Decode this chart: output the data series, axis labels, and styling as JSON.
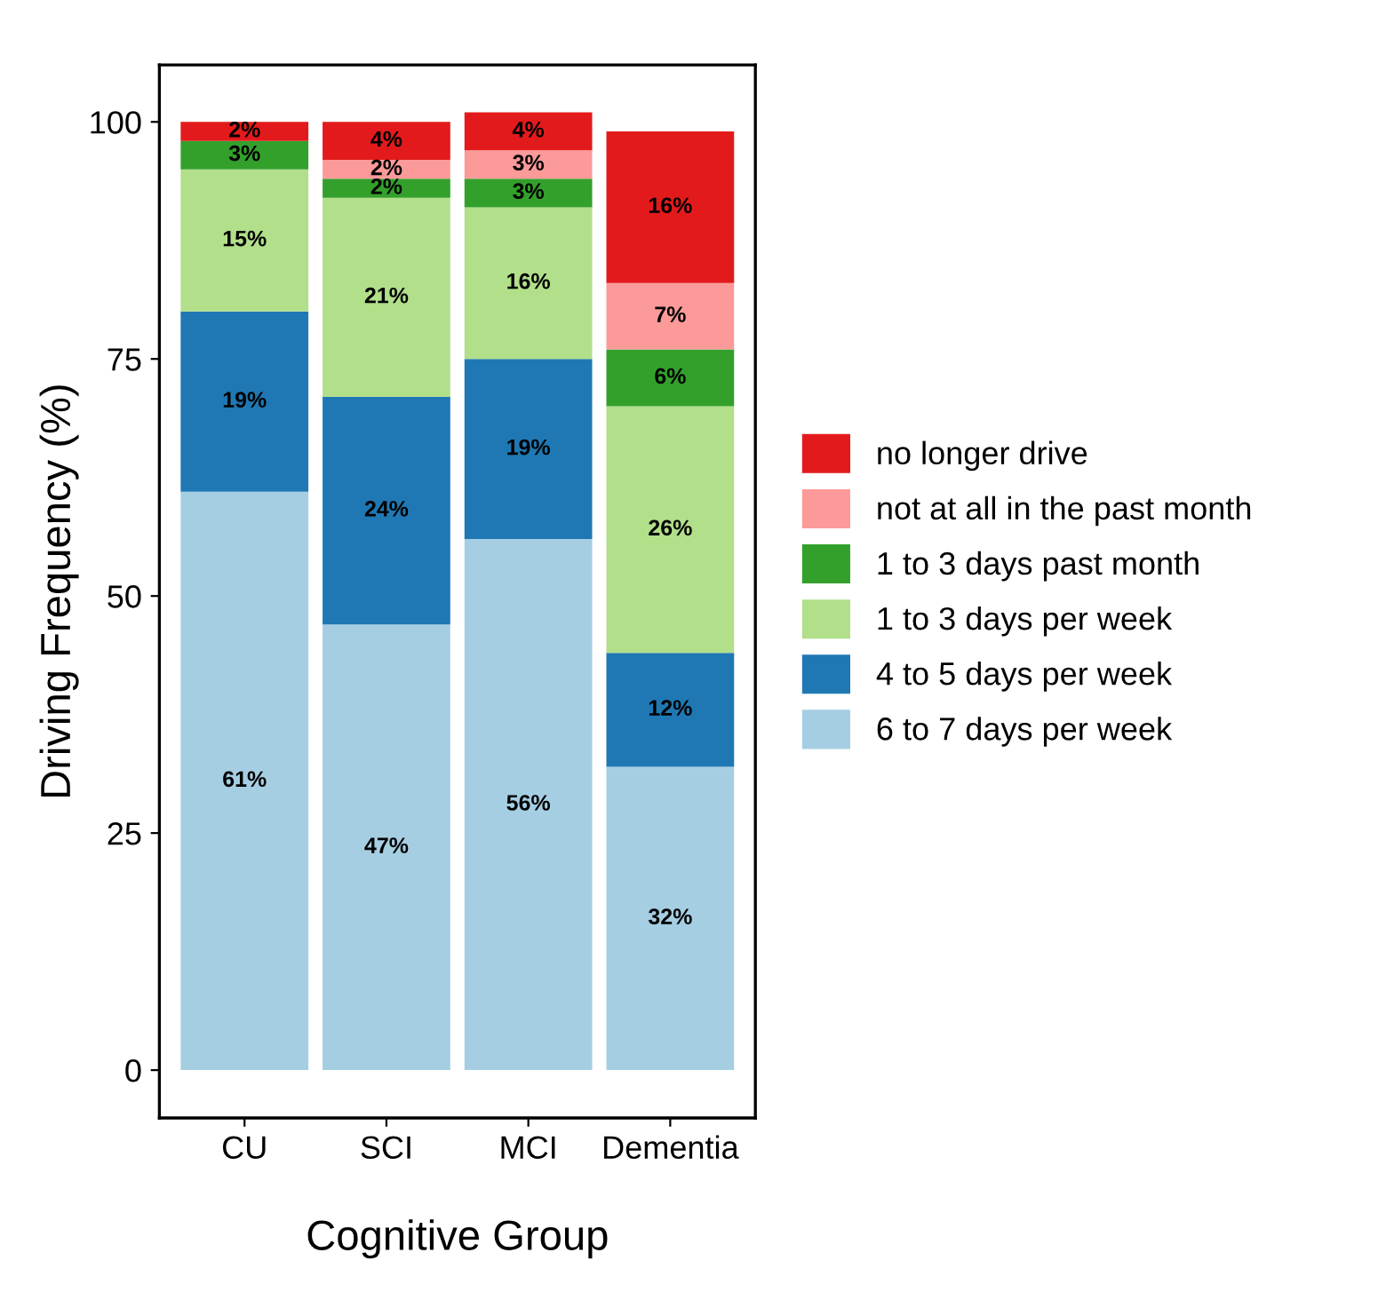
{
  "chart_data": {
    "type": "bar",
    "stacked": true,
    "xlabel": "Cognitive Group",
    "ylabel": "Driving Frequency (%)",
    "categories": [
      "CU",
      "SCI",
      "MCI",
      "Dementia"
    ],
    "ylim": [
      -5.05,
      106
    ],
    "yticks": [
      0,
      25,
      50,
      75,
      100
    ],
    "grid": false,
    "legend": "right",
    "series": [
      {
        "name": "6 to 7 days per week",
        "color": "#a6cee3",
        "values": [
          61,
          47,
          56,
          32
        ],
        "value_labels": [
          "61%",
          "47%",
          "56%",
          "32%"
        ]
      },
      {
        "name": "4 to 5 days per week",
        "color": "#1f78b4",
        "values": [
          19,
          24,
          19,
          12
        ],
        "value_labels": [
          "19%",
          "24%",
          "19%",
          "12%"
        ]
      },
      {
        "name": "1 to 3 days per week",
        "color": "#b2df8a",
        "values": [
          15,
          21,
          16,
          26
        ],
        "value_labels": [
          "15%",
          "21%",
          "16%",
          "26%"
        ]
      },
      {
        "name": "1 to 3 days past month",
        "color": "#33a02c",
        "values": [
          3,
          2,
          3,
          6
        ],
        "value_labels": [
          "3%",
          "2%",
          "3%",
          "6%"
        ]
      },
      {
        "name": "not at all in the past month",
        "color": "#fb9a99",
        "values": [
          0,
          2,
          3,
          7
        ],
        "value_labels": [
          null,
          "2%",
          "3%",
          "7%"
        ]
      },
      {
        "name": "no longer drive",
        "color": "#e31a1c",
        "values": [
          2,
          4,
          4,
          16
        ],
        "value_labels": [
          "2%",
          "4%",
          "4%",
          "16%"
        ]
      }
    ]
  }
}
